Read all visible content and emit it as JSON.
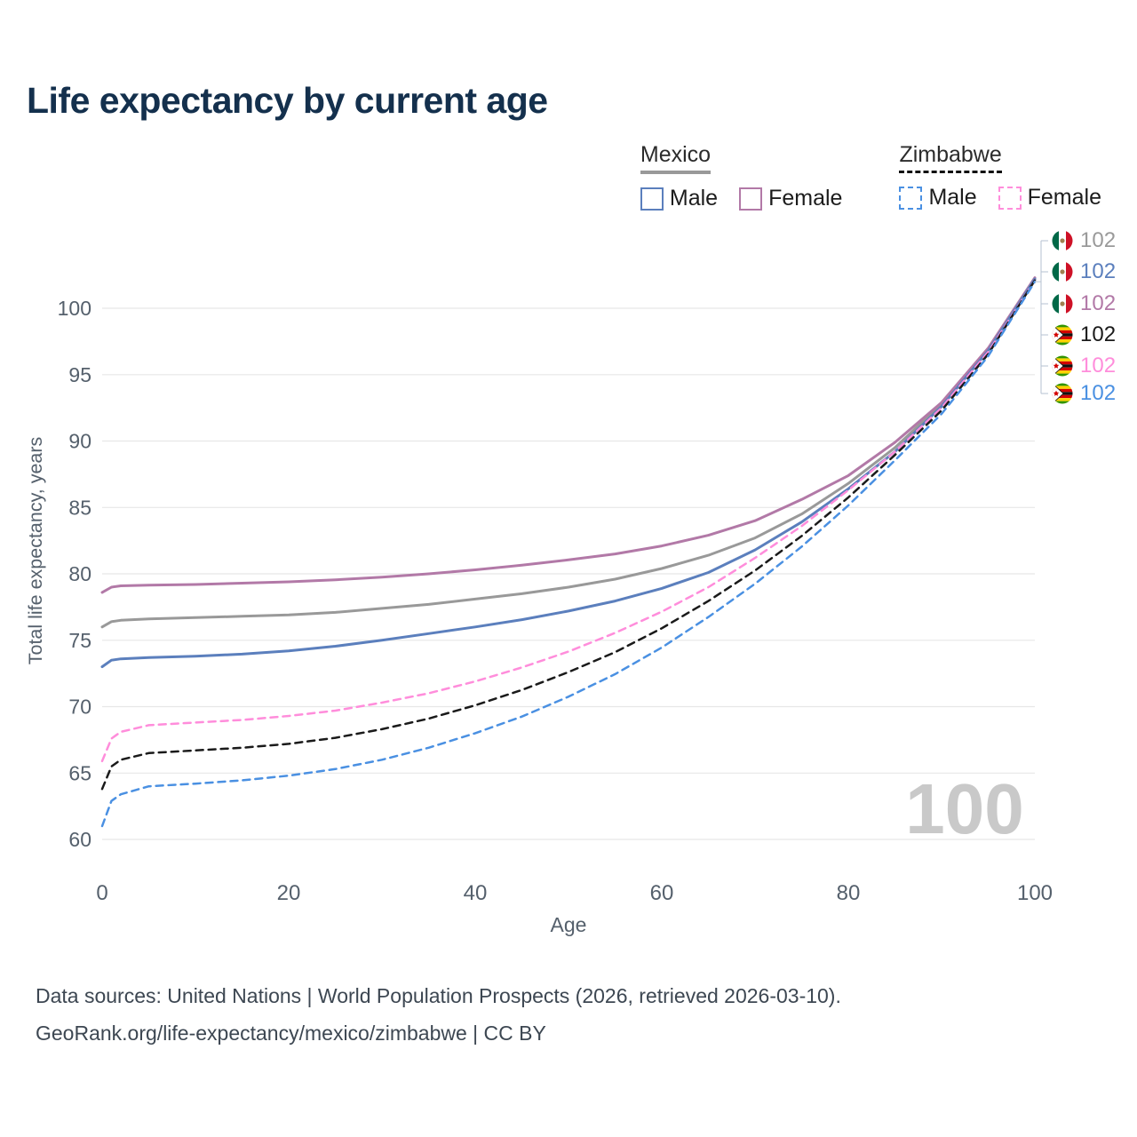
{
  "title": "Life expectancy by current age",
  "legend": {
    "groups": [
      {
        "name": "Mexico",
        "line_style": "solid",
        "underline_color": "#999999",
        "items": [
          {
            "label": "Male",
            "color": "#5b7fbd"
          },
          {
            "label": "Female",
            "color": "#b279a7"
          }
        ]
      },
      {
        "name": "Zimbabwe",
        "line_style": "dashed",
        "underline_color": "#111111",
        "items": [
          {
            "label": "Male",
            "color": "#4a90e2"
          },
          {
            "label": "Female",
            "color": "#ff8ddb"
          }
        ]
      }
    ]
  },
  "age_indicator": "100",
  "end_labels": [
    {
      "flag": "mexico",
      "series": "mexico-both-sexes",
      "value": "102",
      "color": "#9a9a9a"
    },
    {
      "flag": "mexico",
      "series": "mexico-male",
      "value": "102",
      "color": "#5b7fbd"
    },
    {
      "flag": "mexico",
      "series": "mexico-female",
      "value": "102",
      "color": "#b279a7"
    },
    {
      "flag": "zimbabwe",
      "series": "zimbabwe-both-sexes",
      "value": "102",
      "color": "#1a1a1a"
    },
    {
      "flag": "zimbabwe",
      "series": "zimbabwe-female",
      "value": "102",
      "color": "#ff8ddb"
    },
    {
      "flag": "zimbabwe",
      "series": "zimbabwe-male",
      "value": "102",
      "color": "#4a90e2"
    }
  ],
  "footer": {
    "line1": "Data sources: United Nations | World Population Prospects (2026, retrieved 2026-03-10).",
    "line2": "GeoRank.org/life-expectancy/mexico/zimbabwe | CC BY"
  },
  "chart_data": {
    "type": "line",
    "title": "Life expectancy by current age",
    "xlabel": "Age",
    "ylabel": "Total life expectancy, years",
    "xlim": [
      0,
      100
    ],
    "ylim": [
      60,
      103
    ],
    "x_ticks": [
      0,
      20,
      40,
      60,
      80,
      100
    ],
    "y_ticks": [
      60,
      65,
      70,
      75,
      80,
      85,
      90,
      95,
      100
    ],
    "grid": "horizontal",
    "legend_position": "top-right",
    "x": [
      0,
      1,
      2,
      5,
      10,
      15,
      20,
      25,
      30,
      35,
      40,
      45,
      50,
      55,
      60,
      65,
      70,
      75,
      80,
      85,
      90,
      95,
      100
    ],
    "series": [
      {
        "id": "mexico-both",
        "name": "Mexico (both sexes)",
        "country": "Mexico",
        "sex": "Both",
        "color": "#999999",
        "dash": null,
        "width": 3,
        "values": [
          76.0,
          76.4,
          76.5,
          76.6,
          76.7,
          76.8,
          76.9,
          77.1,
          77.4,
          77.7,
          78.1,
          78.5,
          79.0,
          79.6,
          80.4,
          81.4,
          82.7,
          84.5,
          86.8,
          89.5,
          92.8,
          96.9,
          102.2
        ]
      },
      {
        "id": "mexico-female",
        "name": "Mexico female",
        "country": "Mexico",
        "sex": "Female",
        "color": "#b279a7",
        "dash": null,
        "width": 3,
        "values": [
          78.6,
          79.0,
          79.1,
          79.15,
          79.2,
          79.3,
          79.4,
          79.55,
          79.75,
          80.0,
          80.3,
          80.65,
          81.05,
          81.5,
          82.1,
          82.9,
          84.0,
          85.6,
          87.4,
          89.9,
          92.9,
          97.0,
          102.3
        ]
      },
      {
        "id": "mexico-male",
        "name": "Mexico male",
        "country": "Mexico",
        "sex": "Male",
        "color": "#5b7fbd",
        "dash": null,
        "width": 3,
        "values": [
          73.0,
          73.5,
          73.6,
          73.7,
          73.8,
          73.95,
          74.2,
          74.55,
          75.0,
          75.5,
          76.0,
          76.55,
          77.2,
          77.95,
          78.9,
          80.1,
          81.8,
          83.9,
          86.4,
          89.2,
          92.6,
          96.8,
          102.2
        ]
      },
      {
        "id": "zimbabwe-female",
        "name": "Zimbabwe female",
        "country": "Zimbabwe",
        "sex": "Female",
        "color": "#ff8ddb",
        "dash": "8 6",
        "width": 2.5,
        "values": [
          65.9,
          67.6,
          68.1,
          68.6,
          68.8,
          69.0,
          69.3,
          69.7,
          70.3,
          71.0,
          71.9,
          72.95,
          74.15,
          75.55,
          77.15,
          79.0,
          81.2,
          83.6,
          86.3,
          89.2,
          92.5,
          96.7,
          102.1
        ]
      },
      {
        "id": "zimbabwe-both",
        "name": "Zimbabwe (both sexes)",
        "country": "Zimbabwe",
        "sex": "Both",
        "color": "#1a1a1a",
        "dash": "8 6",
        "width": 2.5,
        "values": [
          63.8,
          65.5,
          66.0,
          66.5,
          66.7,
          66.9,
          67.2,
          67.65,
          68.3,
          69.1,
          70.1,
          71.25,
          72.6,
          74.1,
          75.9,
          77.95,
          80.25,
          82.85,
          85.75,
          88.95,
          92.3,
          96.55,
          102.1
        ]
      },
      {
        "id": "zimbabwe-male",
        "name": "Zimbabwe male",
        "country": "Zimbabwe",
        "sex": "Male",
        "color": "#4a90e2",
        "dash": "8 6",
        "width": 2.5,
        "values": [
          61.0,
          62.9,
          63.4,
          64.0,
          64.2,
          64.45,
          64.8,
          65.3,
          66.0,
          66.9,
          68.0,
          69.25,
          70.75,
          72.45,
          74.45,
          76.75,
          79.25,
          82.05,
          85.15,
          88.55,
          92.05,
          96.4,
          102.0
        ]
      }
    ]
  }
}
